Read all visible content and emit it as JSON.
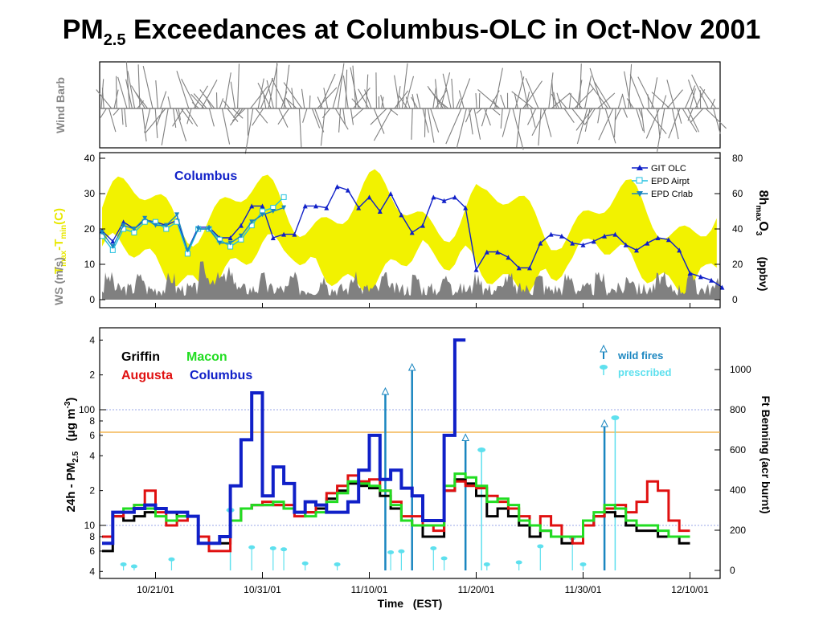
{
  "title": {
    "prefix": "PM",
    "subscript": "2.5",
    "suffix": " Exceedances at Columbus-OLC in Oct-Nov 2001"
  },
  "colors": {
    "yellow": "#f2f200",
    "gray": "#808080",
    "columbus": "#1020c8",
    "griffin": "#000000",
    "macon": "#22dd22",
    "augusta": "#e01010",
    "fire": "#1a86c0",
    "prescribed": "#5ee0ee",
    "threshold": "#f0a830",
    "guide": "#7a8ae0"
  },
  "wind_panel": {
    "ylabel": "Wind Barb"
  },
  "mid_panel": {
    "left_label_top": "T",
    "left_label_sub1": "max",
    "left_label_mid": "-T",
    "left_label_sub2": "min",
    "left_label_end": "(C)",
    "left_label_bottom": "WS (m/s)",
    "right_label_main": "8h",
    "right_label_sub": "max",
    "right_label_end": "O",
    "right_label_sub3": "3",
    "right_label_units": "(ppbv)",
    "site_label": "Columbus",
    "left_ticks": [
      "0",
      "10",
      "20",
      "30",
      "40"
    ],
    "right_ticks": [
      "0",
      "20",
      "40",
      "60",
      "80"
    ],
    "legend": [
      "GIT OLC",
      "EPD Airpt",
      "EPD Crlab"
    ]
  },
  "bottom_panel": {
    "ylabel_main": "24h - PM",
    "ylabel_sub": "2.5",
    "ylabel_units": "(μg m",
    "ylabel_sup": "-3",
    "ylabel_close": ")",
    "right_label": "Ft Benning (acr burnt)",
    "left_ticks_major": [
      "10",
      "100"
    ],
    "left_ticks_minor": [
      "4",
      "6",
      "8",
      "2",
      "4",
      "6",
      "8",
      "2",
      "4"
    ],
    "right_ticks": [
      "0",
      "200",
      "400",
      "600",
      "800",
      "1000"
    ],
    "site_legend": [
      "Griffin",
      "Macon",
      "Augusta",
      "Columbus"
    ],
    "fire_legend": [
      "wild fires",
      "prescribed"
    ],
    "xlabel": "Time   (EST)",
    "x_ticks": [
      "10/21/01",
      "10/31/01",
      "11/10/01",
      "11/20/01",
      "11/30/01",
      "12/10/01"
    ]
  },
  "chart_data": [
    {
      "type": "line",
      "panel": "wind-barb",
      "x_start": "10/16/01",
      "x_end": "12/13/01",
      "title": "",
      "ylabel": "Wind Barb"
    },
    {
      "type": "line",
      "panel": "temperature-ozone",
      "x_unit": "day (10/16/01 → 12/13/01)",
      "x_ticks_days": [
        5,
        15,
        25,
        35,
        45,
        55
      ],
      "ylim_left": [
        0,
        40
      ],
      "ylim_right": [
        0,
        80
      ],
      "series": [
        {
          "name": "GIT OLC",
          "axis": "right",
          "x": [
            0,
            1,
            2,
            3,
            4,
            5,
            6,
            7,
            8,
            9,
            10,
            11,
            12,
            13,
            14,
            15,
            16,
            17,
            18,
            19,
            20,
            21,
            22,
            23,
            24,
            25,
            26,
            27,
            28,
            29,
            30,
            31,
            32,
            33,
            34,
            35,
            36,
            37,
            38,
            39,
            40,
            41,
            42,
            43,
            44,
            45,
            46,
            47,
            48,
            49,
            50,
            51,
            52,
            53,
            54,
            55,
            56,
            57,
            58
          ],
          "values": [
            39,
            33,
            44,
            40,
            45,
            44,
            42,
            45,
            28,
            41,
            41,
            35,
            35,
            42,
            53,
            53,
            35,
            37,
            37,
            53,
            53,
            52,
            64,
            62,
            52,
            58,
            50,
            60,
            48,
            38,
            42,
            58,
            56,
            58,
            52,
            17,
            27,
            27,
            24,
            18,
            18,
            32,
            37,
            36,
            32,
            31,
            33,
            36,
            37,
            31,
            28,
            32,
            35,
            34,
            28,
            15,
            13,
            11,
            7
          ]
        },
        {
          "name": "EPD Airpt",
          "axis": "left",
          "x": [
            0,
            1,
            2,
            3,
            4,
            5,
            6,
            7,
            8,
            9,
            10,
            11,
            12,
            13,
            14,
            15,
            16,
            17
          ],
          "values": [
            18,
            14,
            20,
            19,
            22,
            22,
            20,
            22,
            13,
            20,
            20,
            17,
            15,
            17,
            21,
            25,
            26,
            29
          ]
        },
        {
          "name": "EPD Crlab",
          "axis": "left",
          "x": [
            0,
            1,
            2,
            3,
            4,
            5,
            6,
            7,
            8,
            9,
            10,
            11,
            12,
            13,
            14,
            15,
            16,
            17
          ],
          "values": [
            19,
            15,
            21,
            20,
            23,
            21,
            21,
            24,
            14,
            20,
            20,
            16,
            16,
            18,
            22,
            24,
            25,
            26
          ]
        }
      ]
    },
    {
      "type": "line",
      "panel": "pm25",
      "yscale": "log",
      "ylim_left": [
        4,
        400
      ],
      "ylim_right": [
        0,
        1200
      ],
      "threshold": 65,
      "xlabel": "Time   (EST)",
      "x_ticks": [
        "10/21/01",
        "10/31/01",
        "11/10/01",
        "11/20/01",
        "11/30/01",
        "12/10/01"
      ],
      "series": [
        {
          "name": "Columbus",
          "values": [
            7,
            13,
            13,
            14,
            15,
            14,
            13,
            13,
            12,
            7,
            7,
            8,
            22,
            55,
            140,
            18,
            32,
            23,
            13,
            16,
            15,
            13,
            13,
            16,
            30,
            60,
            25,
            30,
            21,
            18,
            11,
            11,
            60,
            400
          ]
        },
        {
          "name": "Griffin",
          "values": [
            6,
            12,
            11,
            12,
            13,
            14,
            13,
            12,
            12,
            7,
            7,
            7,
            11,
            14,
            15,
            15,
            15,
            14,
            13,
            13,
            14,
            17,
            20,
            23,
            22,
            21,
            18,
            14,
            11,
            10,
            8,
            8,
            20,
            25,
            23,
            18,
            12,
            14,
            12,
            10,
            8,
            9,
            8,
            7,
            8,
            10,
            12,
            13,
            12,
            10,
            9,
            9,
            8,
            8,
            7
          ]
        },
        {
          "name": "Macon",
          "values": [
            7,
            13,
            14,
            15,
            14,
            12,
            11,
            12,
            12,
            7,
            7,
            8,
            11,
            14,
            15,
            15,
            16,
            14,
            13,
            12,
            13,
            16,
            19,
            24,
            23,
            22,
            20,
            15,
            11,
            10,
            10,
            10,
            22,
            28,
            26,
            22,
            16,
            17,
            15,
            11,
            10,
            9,
            8,
            8,
            8,
            11,
            13,
            15,
            14,
            11,
            10,
            10,
            9,
            8,
            8
          ]
        },
        {
          "name": "Augusta",
          "values": [
            8,
            12,
            13,
            15,
            20,
            13,
            10,
            11,
            12,
            8,
            6,
            6,
            11,
            14,
            15,
            16,
            15,
            15,
            12,
            13,
            15,
            19,
            22,
            27,
            24,
            25,
            20,
            16,
            12,
            12,
            10,
            9,
            20,
            24,
            22,
            21,
            18,
            16,
            14,
            12,
            10,
            12,
            10,
            8,
            7,
            10,
            12,
            14,
            15,
            13,
            16,
            24,
            20,
            11,
            9
          ]
        },
        {
          "name": "wild fires",
          "axis": "right",
          "values": [
            1020,
            740,
            900,
            670
          ]
        },
        {
          "name": "prescribed",
          "axis": "right",
          "values": [
            300,
            760,
            600
          ]
        }
      ]
    }
  ]
}
